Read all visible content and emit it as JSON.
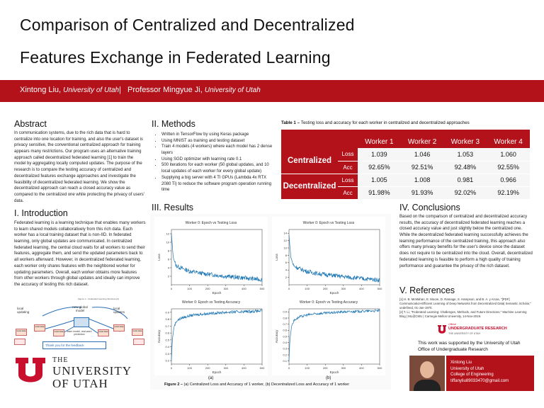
{
  "title": {
    "line1": "Comparison of Centralized and Decentralized",
    "line2": "Features Exchange in Federated Learning"
  },
  "authors": {
    "author1_name": "Xintong Liu,",
    "author1_affil": "University of Utah",
    "separator": "|",
    "author2_name": "Professor Mingyue Ji,",
    "author2_affil": "University of Utah"
  },
  "abstract": {
    "heading": "Abstract",
    "text": "In communication systems, due to the rich data that is hard to centralize into one location for training, and also the user's dataset is privacy sensitive, the conventional centralized approach for training appears many restrictions. Our program uses an alternative training approach called decentralized federated learning [1] to train the model by aggregating locally computed updates. The purpose of the research is to compare the testing accuracy of centralized and decentralized features exchange approaches and investigate the feasibility of decentralized federated learning. We show the decentralized approach can reach a closed accuracy value as compared to the centralized one while protecting the privacy of users' data."
  },
  "introduction": {
    "heading": "I. Introduction",
    "text": "Federated learning is a learning technique that enables many workers to learn shared models collaboratively from this rich data. Each worker has a local training dataset that is non-IID. In federated learning, only global updates are communicated. In centralized federated learning, the central cloud waits for all workers to send their features, aggregate them, and send the updated parameters back to all workers afterward. However, in decentralized federated learning, each worker only shares features with the neighbored worker for updating parameters. Overall, each worker obtains more features from other workers through global updates and ideally can improve the accuracy of testing this rich dataset.",
    "figure1_caption": "Figure 1 – Federated Learning Structure [2]",
    "diagram_labels": {
      "local_updating": "local updating",
      "new_global_model": "new global model",
      "local_updates": "local updates",
      "learn_model": "learn model, real-word prediction",
      "local_data": "local data",
      "thanks": "Thank you for the feedback"
    }
  },
  "methods": {
    "heading": "II. Methods",
    "items": [
      "Written in TensorFlow by using Keras package",
      "Using MNIST as training and testing dataset",
      "Train 4 models (4 workers) where each model has 2 dense layers",
      "Using SGD optimizer with learning rate 0.1",
      "500 iterations for each worker (50 global updates, and 10 local updates of each worker for every global update)",
      "Supplying a big server with 4 TI GPUs (Lambda 4x RTX 2080 Ti) to reduce the software program operation running time"
    ]
  },
  "table1": {
    "caption_bold": "Table 1 –",
    "caption_rest": "Testing loss and accuracy for each worker in centralized and decentralized approaches",
    "headers": [
      "Worker 1",
      "Worker 2",
      "Worker 3",
      "Worker 4"
    ],
    "groups": [
      {
        "name": "Centralized",
        "rows": [
          {
            "metric": "Loss",
            "values": [
              "1.039",
              "1.046",
              "1.053",
              "1.060"
            ]
          },
          {
            "metric": "Acc",
            "values": [
              "92.65%",
              "92.51%",
              "92.48%",
              "92.55%"
            ]
          }
        ]
      },
      {
        "name": "Decentralized",
        "rows": [
          {
            "metric": "Loss",
            "values": [
              "1.005",
              "1.008",
              "0.981",
              "0.966"
            ]
          },
          {
            "metric": "Acc",
            "values": [
              "91.98%",
              "91.93%",
              "92.02%",
              "92.19%"
            ]
          }
        ]
      }
    ]
  },
  "results": {
    "heading": "III. Results",
    "figure2_caption_bold": "Figure 2 –",
    "figure2_caption_rest": "(a) Centralized Loss and Accuracy of 1 worker, (b) Decentralized Loss and Accuracy of 1 worker",
    "label_a": "(a)",
    "label_b": "(b)"
  },
  "chart_data": [
    {
      "type": "line",
      "title": "Worker 0: Epoch vs Testing Loss",
      "xlabel": "Epoch",
      "ylabel": "Loss",
      "xlim": [
        0,
        500
      ],
      "ylim": [
        0,
        13
      ],
      "xticks": [
        0,
        100,
        200,
        300,
        400,
        500
      ],
      "yticks": [
        2,
        4,
        6,
        8,
        10,
        12
      ],
      "series": [
        {
          "x": [
            0,
            10,
            25,
            50,
            100,
            150,
            200,
            300,
            400,
            500
          ],
          "y": [
            12,
            6.5,
            4.5,
            4.0,
            3.2,
            2.8,
            2.5,
            2.0,
            1.6,
            1.2
          ]
        }
      ]
    },
    {
      "type": "line",
      "title": "Worker 0: Epoch vs Testing Loss",
      "xlabel": "Epoch",
      "ylabel": "Loss",
      "xlim": [
        0,
        500
      ],
      "ylim": [
        0,
        15
      ],
      "xticks": [
        0,
        100,
        200,
        300,
        400,
        500
      ],
      "yticks": [
        2,
        4,
        6,
        8,
        10,
        12,
        14
      ],
      "series": [
        {
          "x": [
            0,
            10,
            25,
            50,
            100,
            150,
            200,
            300,
            400,
            500
          ],
          "y": [
            13.5,
            7.5,
            5.2,
            4.5,
            3.6,
            3.1,
            2.8,
            2.2,
            1.7,
            1.3
          ]
        }
      ]
    },
    {
      "type": "line",
      "title": "Worker 0: Epoch vs Testing Accuracy",
      "xlabel": "Epoch",
      "ylabel": "Accuracy",
      "xlim": [
        0,
        500
      ],
      "ylim": [
        0.15,
        0.95
      ],
      "xticks": [
        0,
        100,
        200,
        300,
        400,
        500
      ],
      "yticks": [
        0.2,
        0.3,
        0.4,
        0.5,
        0.6,
        0.7,
        0.8,
        0.9
      ],
      "series": [
        {
          "x": [
            0,
            5,
            15,
            30,
            60,
            100,
            150,
            200,
            300,
            400,
            500
          ],
          "y": [
            0.2,
            0.5,
            0.7,
            0.78,
            0.82,
            0.85,
            0.87,
            0.88,
            0.9,
            0.91,
            0.92
          ]
        }
      ]
    },
    {
      "type": "line",
      "title": "Worker 0: Epoch vs Testing Accuracy",
      "xlabel": "Epoch",
      "ylabel": "Accuracy",
      "xlim": [
        0,
        500
      ],
      "ylim": [
        0.05,
        0.95
      ],
      "xticks": [
        0,
        100,
        200,
        300,
        400,
        500
      ],
      "yticks": [
        0.1,
        0.2,
        0.3,
        0.4,
        0.5,
        0.6,
        0.7,
        0.8,
        0.9
      ],
      "series": [
        {
          "x": [
            0,
            5,
            15,
            30,
            60,
            100,
            150,
            200,
            300,
            400,
            500
          ],
          "y": [
            0.1,
            0.45,
            0.68,
            0.77,
            0.82,
            0.85,
            0.87,
            0.88,
            0.9,
            0.91,
            0.92
          ]
        }
      ]
    }
  ],
  "conclusions": {
    "heading": "IV. Conclusions",
    "text": "Based on the comparison of centralized and decentralized accuracy results, the accuracy of decentralized federated learning reaches a closed accuracy value and just slightly below the centralized one. While the decentralized federated learning successfully achieves the learning performance of the centralized training, this approach also offers many privacy benefits for the user's device since the dataset does not require to be centralized into the cloud. Overall, decentralized federated learning is feasible to perform a high quality of training performance and guarantee the privacy of the rich dataset."
  },
  "references": {
    "heading": "V. References",
    "items": [
      "[1] H. B. McMahan, E. Moore, D. Ramage, S. Hampson, and B. A. y Arcas, \"[PDF] Communication-Efficient Learning of Deep Networks from Decentralized Data| Semantic Scholar,\" undefined, 01-Jan-1970.",
      "[2] T. Li, \"Federated Learning: Challenges, Methods, and Future Directions,\" Machine Learning Blog | ML@CMU | Carnegie Mellon University, 14-Nov-2019."
    ]
  },
  "ack_logo": {
    "official": "Official",
    "name": "UNDERGRADUATE RESEARCH",
    "sub": "THE UNIVERSITY OF UTAH"
  },
  "acknowledgement": "This work was supported by the University of Utah Office of Undergraduate Research",
  "contact": {
    "name": "Xintong Liu",
    "school": "University of Utah",
    "college": "College of Engineering",
    "email": "tiffanyliu89033470@gmail.com"
  },
  "logo": {
    "the": "THE",
    "university": "UNIVERSITY",
    "of_utah": "OF UTAH"
  },
  "colors": {
    "brand_red": "#b3121b",
    "plot_blue": "#1f77b4"
  }
}
